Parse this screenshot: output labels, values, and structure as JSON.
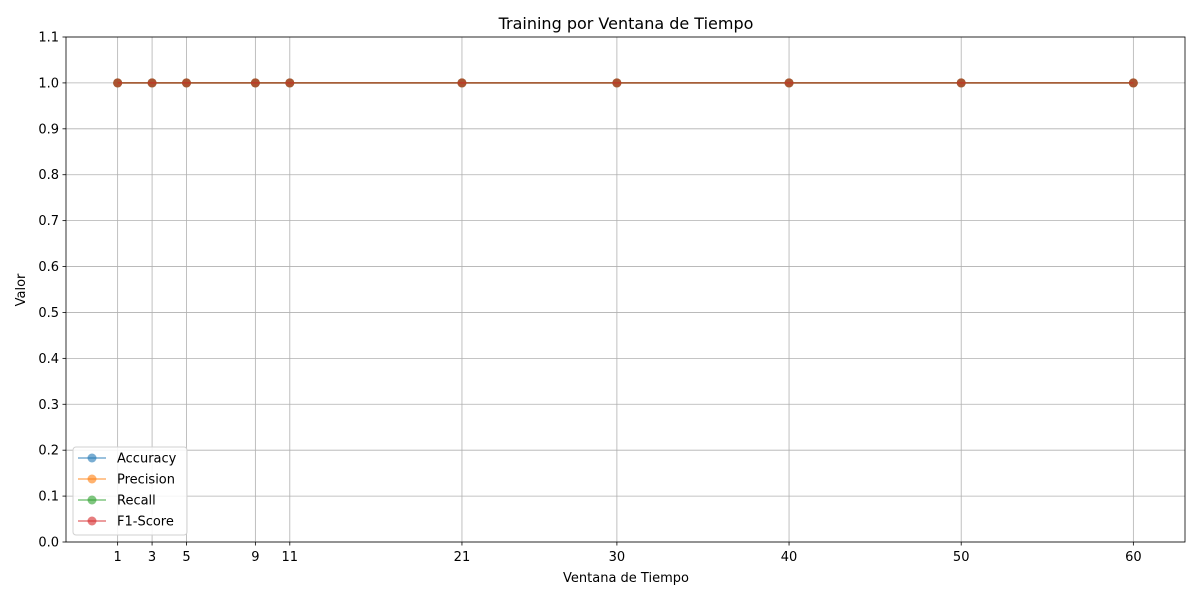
{
  "chart_data": {
    "type": "line",
    "title": "Training por Ventana de Tiempo",
    "xlabel": "Ventana de Tiempo",
    "ylabel": "Valor",
    "x": [
      1,
      3,
      5,
      9,
      11,
      21,
      30,
      40,
      50,
      60
    ],
    "xticks": [
      "1",
      "3",
      "5",
      "9",
      "11",
      "21",
      "30",
      "40",
      "50",
      "60"
    ],
    "ylim": [
      0.0,
      1.1
    ],
    "yticks": [
      "0.0",
      "0.1",
      "0.2",
      "0.3",
      "0.4",
      "0.5",
      "0.6",
      "0.7",
      "0.8",
      "0.9",
      "1.0",
      "1.1"
    ],
    "grid": true,
    "legend_position": "lower-left",
    "series": [
      {
        "name": "Accuracy",
        "color": "#1f77b4",
        "values": [
          1.0,
          1.0,
          1.0,
          1.0,
          1.0,
          1.0,
          1.0,
          1.0,
          1.0,
          1.0
        ]
      },
      {
        "name": "Precision",
        "color": "#ff7f0e",
        "values": [
          1.0,
          1.0,
          1.0,
          1.0,
          1.0,
          1.0,
          1.0,
          1.0,
          1.0,
          1.0
        ]
      },
      {
        "name": "Recall",
        "color": "#2ca02c",
        "values": [
          1.0,
          1.0,
          1.0,
          1.0,
          1.0,
          1.0,
          1.0,
          1.0,
          1.0,
          1.0
        ]
      },
      {
        "name": "F1-Score",
        "color": "#d62728",
        "values": [
          1.0,
          1.0,
          1.0,
          1.0,
          1.0,
          1.0,
          1.0,
          1.0,
          1.0,
          1.0
        ]
      }
    ]
  }
}
